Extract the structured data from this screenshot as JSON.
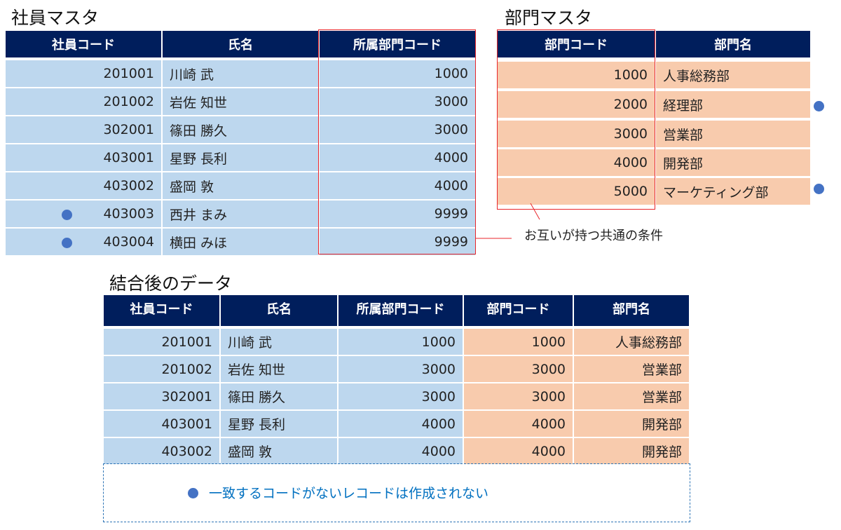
{
  "employee_master": {
    "title": "社員マスタ",
    "headers": [
      "社員コード",
      "氏名",
      "所属部門コード"
    ],
    "rows": [
      [
        "201001",
        "川崎 武",
        "1000"
      ],
      [
        "201002",
        "岩佐 知世",
        "3000"
      ],
      [
        "302001",
        "篠田 勝久",
        "3000"
      ],
      [
        "403001",
        "星野 長利",
        "4000"
      ],
      [
        "403002",
        "盛岡 敦",
        "4000"
      ],
      [
        "403003",
        "西井 まみ",
        "9999"
      ],
      [
        "403004",
        "横田 みほ",
        "9999"
      ]
    ],
    "marked_rows": [
      5,
      6
    ]
  },
  "department_master": {
    "title": "部門マスタ",
    "headers": [
      "部門コード",
      "部門名"
    ],
    "rows": [
      [
        "1000",
        "人事総務部"
      ],
      [
        "2000",
        "経理部"
      ],
      [
        "3000",
        "営業部"
      ],
      [
        "4000",
        "開発部"
      ],
      [
        "5000",
        "マーケティング部"
      ]
    ],
    "marked_rows": [
      1,
      4
    ]
  },
  "common_condition_label": "お互いが持つ共通の条件",
  "joined": {
    "title": "結合後のデータ",
    "headers": [
      "社員コード",
      "氏名",
      "所属部門コード",
      "部門コード",
      "部門名"
    ],
    "rows": [
      [
        "201001",
        "川崎 武",
        "1000",
        "1000",
        "人事総務部"
      ],
      [
        "201002",
        "岩佐 知世",
        "3000",
        "3000",
        "営業部"
      ],
      [
        "302001",
        "篠田 勝久",
        "3000",
        "3000",
        "営業部"
      ],
      [
        "403001",
        "星野 長利",
        "4000",
        "4000",
        "開発部"
      ],
      [
        "403002",
        "盛岡 敦",
        "4000",
        "4000",
        "開発部"
      ]
    ],
    "note": "一致するコードがないレコードは作成されない"
  },
  "colors": {
    "header": "#001e5c",
    "employee_fill": "#bdd7ee",
    "department_fill": "#f8cbad",
    "highlight": "#e8262b",
    "marker": "#4472c4",
    "note_text": "#0070c0"
  }
}
